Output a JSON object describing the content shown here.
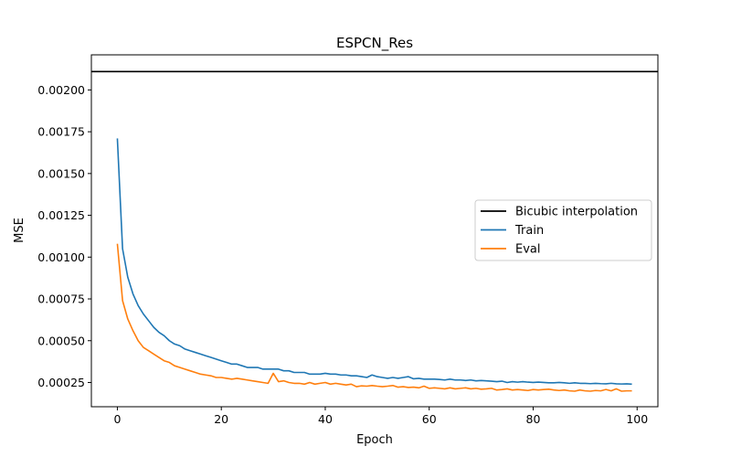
{
  "chart_data": {
    "type": "line",
    "title": "ESPCN_Res",
    "xlabel": "Epoch",
    "ylabel": "MSE",
    "xlim": [
      -5,
      104
    ],
    "ylim": [
      0.000105,
      0.00221
    ],
    "xticks": [
      0,
      20,
      40,
      60,
      80,
      100
    ],
    "xtick_labels": [
      "0",
      "20",
      "40",
      "60",
      "80",
      "100"
    ],
    "yticks": [
      0.00025,
      0.0005,
      0.00075,
      0.001,
      0.00125,
      0.0015,
      0.00175,
      0.002
    ],
    "ytick_labels": [
      "0.00025",
      "0.00050",
      "0.00075",
      "0.00100",
      "0.00125",
      "0.00150",
      "0.00175",
      "0.00200"
    ],
    "grid": false,
    "legend_position": "center-right",
    "hline": {
      "name": "Bicubic interpolation",
      "value": 0.00211,
      "color": "#000000"
    },
    "series": [
      {
        "name": "Train",
        "color": "#1f77b4",
        "x": [
          0,
          1,
          2,
          3,
          4,
          5,
          6,
          7,
          8,
          9,
          10,
          11,
          12,
          13,
          14,
          15,
          16,
          17,
          18,
          19,
          20,
          21,
          22,
          23,
          24,
          25,
          26,
          27,
          28,
          29,
          30,
          31,
          32,
          33,
          34,
          35,
          36,
          37,
          38,
          39,
          40,
          41,
          42,
          43,
          44,
          45,
          46,
          47,
          48,
          49,
          50,
          51,
          52,
          53,
          54,
          55,
          56,
          57,
          58,
          59,
          60,
          61,
          62,
          63,
          64,
          65,
          66,
          67,
          68,
          69,
          70,
          71,
          72,
          73,
          74,
          75,
          76,
          77,
          78,
          79,
          80,
          81,
          82,
          83,
          84,
          85,
          86,
          87,
          88,
          89,
          90,
          91,
          92,
          93,
          94,
          95,
          96,
          97,
          98,
          99
        ],
        "values": [
          0.00171,
          0.00105,
          0.00088,
          0.00078,
          0.00071,
          0.00066,
          0.00062,
          0.00058,
          0.00055,
          0.00053,
          0.0005,
          0.00048,
          0.00047,
          0.00045,
          0.00044,
          0.00043,
          0.00042,
          0.00041,
          0.0004,
          0.00039,
          0.00038,
          0.00037,
          0.00036,
          0.00036,
          0.00035,
          0.00034,
          0.00034,
          0.00034,
          0.00033,
          0.00033,
          0.00033,
          0.00033,
          0.00032,
          0.00032,
          0.00031,
          0.00031,
          0.00031,
          0.0003,
          0.0003,
          0.0003,
          0.000305,
          0.0003,
          0.0003,
          0.000295,
          0.000295,
          0.00029,
          0.00029,
          0.000285,
          0.00028,
          0.000295,
          0.000285,
          0.00028,
          0.000275,
          0.00028,
          0.000275,
          0.00028,
          0.000285,
          0.000272,
          0.000275,
          0.00027,
          0.00027,
          0.00027,
          0.000268,
          0.000265,
          0.00027,
          0.000265,
          0.000265,
          0.000262,
          0.000265,
          0.00026,
          0.000262,
          0.00026,
          0.000258,
          0.000255,
          0.000258,
          0.00025,
          0.000255,
          0.000252,
          0.000255,
          0.000252,
          0.00025,
          0.000252,
          0.00025,
          0.000248,
          0.000248,
          0.00025,
          0.000248,
          0.000245,
          0.000248,
          0.000245,
          0.000245,
          0.000243,
          0.000245,
          0.000243,
          0.000242,
          0.000245,
          0.000242,
          0.000241,
          0.000242,
          0.00024
        ]
      },
      {
        "name": "Eval",
        "color": "#ff7f0e",
        "x": [
          0,
          1,
          2,
          3,
          4,
          5,
          6,
          7,
          8,
          9,
          10,
          11,
          12,
          13,
          14,
          15,
          16,
          17,
          18,
          19,
          20,
          21,
          22,
          23,
          24,
          25,
          26,
          27,
          28,
          29,
          30,
          31,
          32,
          33,
          34,
          35,
          36,
          37,
          38,
          39,
          40,
          41,
          42,
          43,
          44,
          45,
          46,
          47,
          48,
          49,
          50,
          51,
          52,
          53,
          54,
          55,
          56,
          57,
          58,
          59,
          60,
          61,
          62,
          63,
          64,
          65,
          66,
          67,
          68,
          69,
          70,
          71,
          72,
          73,
          74,
          75,
          76,
          77,
          78,
          79,
          80,
          81,
          82,
          83,
          84,
          85,
          86,
          87,
          88,
          89,
          90,
          91,
          92,
          93,
          94,
          95,
          96,
          97,
          98,
          99
        ],
        "values": [
          0.00108,
          0.00074,
          0.00063,
          0.00056,
          0.0005,
          0.00046,
          0.00044,
          0.00042,
          0.0004,
          0.00038,
          0.00037,
          0.00035,
          0.00034,
          0.00033,
          0.00032,
          0.00031,
          0.0003,
          0.000295,
          0.00029,
          0.00028,
          0.00028,
          0.000275,
          0.00027,
          0.000275,
          0.00027,
          0.000265,
          0.00026,
          0.000255,
          0.00025,
          0.000245,
          0.000305,
          0.000255,
          0.00026,
          0.00025,
          0.000245,
          0.000245,
          0.00024,
          0.00025,
          0.00024,
          0.000245,
          0.00025,
          0.00024,
          0.000245,
          0.00024,
          0.000235,
          0.00024,
          0.000225,
          0.00023,
          0.000228,
          0.000232,
          0.000228,
          0.000225,
          0.000228,
          0.000232,
          0.000222,
          0.000225,
          0.00022,
          0.000222,
          0.000218,
          0.000228,
          0.000215,
          0.000218,
          0.000215,
          0.000212,
          0.000218,
          0.000212,
          0.000215,
          0.000218,
          0.000212,
          0.000215,
          0.00021,
          0.000212,
          0.000215,
          0.000205,
          0.000208,
          0.000212,
          0.000205,
          0.000208,
          0.000205,
          0.000202,
          0.000208,
          0.000205,
          0.000208,
          0.00021,
          0.000205,
          0.000202,
          0.000205,
          0.0002,
          0.000198,
          0.000205,
          0.0002,
          0.000198,
          0.000202,
          0.0002,
          0.000208,
          0.0002,
          0.000212,
          0.000198,
          0.0002,
          0.0002
        ]
      }
    ]
  }
}
